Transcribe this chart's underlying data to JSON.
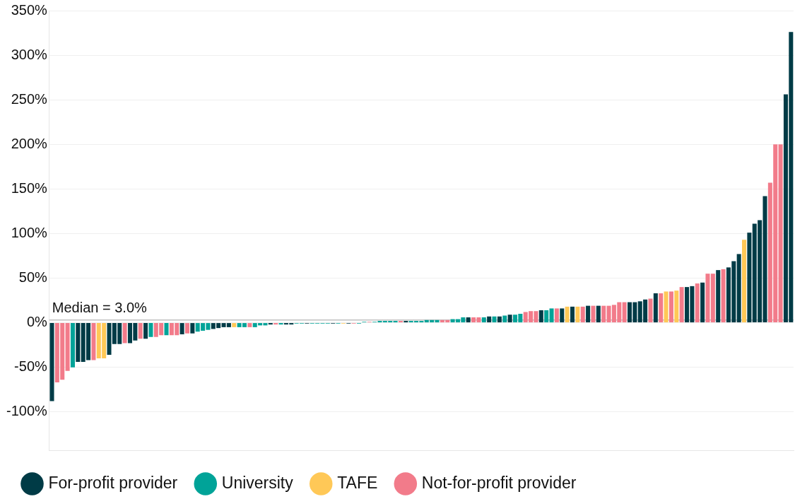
{
  "chart_data": {
    "type": "bar",
    "categories": [
      null,
      null,
      null,
      null,
      null,
      null,
      null,
      null,
      null,
      null,
      null,
      null,
      null,
      null,
      null,
      null,
      null,
      null,
      null,
      null,
      null,
      null,
      null,
      null,
      null,
      null,
      null,
      null,
      null,
      null,
      null,
      null,
      null,
      null,
      null,
      null,
      null,
      null,
      null,
      null,
      null,
      null,
      null,
      null,
      null,
      null,
      null,
      null,
      null,
      null,
      null,
      null,
      null,
      null,
      null,
      null,
      null,
      null,
      null,
      null,
      null,
      null,
      null,
      null,
      null,
      null,
      null,
      null,
      null,
      null,
      null,
      null,
      null,
      null,
      null,
      null,
      null,
      null,
      null,
      null,
      null,
      null,
      null,
      null,
      null,
      null,
      null,
      null,
      null,
      null,
      null,
      null,
      null,
      null,
      null,
      null,
      null,
      null,
      null,
      null,
      null,
      null,
      null,
      null,
      null,
      null,
      null,
      null,
      null,
      null,
      null,
      null,
      null,
      null,
      null,
      null,
      null,
      null,
      null,
      null,
      null,
      null,
      null,
      null,
      null,
      null,
      null,
      null,
      null,
      null,
      null,
      null,
      null,
      null,
      null,
      null,
      null,
      null,
      null,
      null,
      null,
      null,
      null
    ],
    "series": [
      {
        "name": "For-profit provider",
        "color": "#003b46",
        "values": [
          -88,
          null,
          null,
          null,
          null,
          -44,
          -44,
          -42,
          null,
          null,
          null,
          -36,
          -24,
          -24,
          null,
          -23,
          -20,
          null,
          -18,
          null,
          null,
          null,
          null,
          null,
          null,
          -13,
          null,
          -12,
          null,
          null,
          null,
          -7,
          -6,
          -5,
          -5,
          null,
          null,
          null,
          null,
          null,
          null,
          null,
          -2,
          null,
          null,
          -2,
          -2,
          null,
          null,
          -1,
          null,
          null,
          null,
          null,
          -1,
          null,
          null,
          -1,
          null,
          null,
          null,
          null,
          null,
          null,
          null,
          null,
          null,
          null,
          2,
          null,
          null,
          null,
          null,
          null,
          null,
          null,
          null,
          null,
          null,
          null,
          6,
          null,
          null,
          null,
          7,
          null,
          7,
          null,
          9,
          null,
          null,
          null,
          null,
          null,
          14,
          null,
          null,
          null,
          16,
          null,
          18,
          null,
          null,
          19,
          null,
          19,
          null,
          null,
          null,
          null,
          null,
          23,
          23,
          24,
          26,
          null,
          33,
          null,
          null,
          null,
          null,
          null,
          40,
          41,
          null,
          45,
          null,
          null,
          59,
          null,
          62,
          69,
          77,
          null,
          101,
          111,
          115,
          142,
          null,
          null,
          null,
          256,
          326
        ]
      },
      {
        "name": "University",
        "color": "#00a398",
        "values": [
          null,
          null,
          null,
          null,
          -50,
          null,
          null,
          null,
          null,
          null,
          null,
          null,
          null,
          null,
          null,
          null,
          null,
          null,
          null,
          -16,
          null,
          null,
          -14,
          null,
          null,
          null,
          null,
          null,
          -10,
          -9,
          -8,
          null,
          null,
          null,
          null,
          null,
          -5,
          -5,
          null,
          -5,
          -3,
          -3,
          null,
          null,
          -2,
          null,
          null,
          -1,
          -1,
          null,
          -1,
          -1,
          -1,
          -1,
          null,
          -1,
          null,
          null,
          null,
          -1,
          1,
          null,
          1,
          2,
          2,
          2,
          2,
          null,
          null,
          2,
          2,
          2,
          3,
          3,
          3,
          null,
          null,
          4,
          4,
          6,
          null,
          null,
          null,
          6,
          null,
          7,
          null,
          8,
          null,
          9,
          10,
          null,
          null,
          null,
          null,
          14,
          16,
          null,
          null,
          null,
          null,
          null,
          null,
          null,
          null,
          null,
          null,
          null,
          null,
          null,
          null,
          null,
          null,
          null,
          null,
          null,
          null,
          null,
          null,
          null,
          null,
          null,
          null,
          null,
          null,
          null,
          null,
          null,
          null,
          null,
          null,
          null,
          null,
          null,
          null,
          null,
          null,
          null,
          null,
          null,
          null,
          null,
          null
        ]
      },
      {
        "name": "TAFE",
        "color": "#ffc857",
        "values": [
          null,
          null,
          null,
          null,
          null,
          null,
          null,
          null,
          null,
          -40,
          -40,
          null,
          null,
          null,
          null,
          null,
          null,
          null,
          null,
          null,
          null,
          null,
          null,
          null,
          null,
          null,
          null,
          null,
          null,
          null,
          null,
          null,
          null,
          null,
          null,
          -5,
          null,
          null,
          null,
          null,
          null,
          null,
          null,
          null,
          null,
          null,
          null,
          null,
          null,
          null,
          null,
          null,
          null,
          null,
          null,
          null,
          -1,
          null,
          null,
          null,
          null,
          null,
          null,
          null,
          null,
          null,
          null,
          null,
          null,
          null,
          null,
          null,
          null,
          null,
          null,
          null,
          null,
          null,
          null,
          null,
          null,
          null,
          null,
          null,
          null,
          null,
          null,
          null,
          null,
          null,
          null,
          null,
          null,
          null,
          null,
          null,
          null,
          null,
          null,
          18,
          null,
          18,
          null,
          null,
          null,
          null,
          null,
          null,
          null,
          null,
          null,
          null,
          null,
          null,
          null,
          null,
          null,
          null,
          35,
          null,
          36,
          null,
          null,
          null,
          null,
          null,
          null,
          null,
          null,
          null,
          null,
          null,
          null,
          93,
          null,
          null,
          null,
          null,
          null,
          null,
          null,
          null,
          null
        ]
      },
      {
        "name": "Not-for-profit provider",
        "color": "#f27b8a",
        "values": [
          null,
          -67,
          -64,
          -54,
          null,
          null,
          null,
          null,
          -42,
          null,
          null,
          null,
          null,
          null,
          -23,
          null,
          null,
          -18,
          null,
          null,
          -16,
          -14,
          null,
          -14,
          -14,
          null,
          -12,
          null,
          null,
          null,
          null,
          null,
          null,
          null,
          null,
          null,
          null,
          null,
          -5,
          null,
          null,
          null,
          null,
          -2,
          null,
          null,
          null,
          null,
          null,
          null,
          null,
          null,
          null,
          null,
          null,
          null,
          null,
          null,
          -1,
          null,
          null,
          1,
          null,
          null,
          null,
          null,
          null,
          2,
          null,
          null,
          null,
          null,
          null,
          null,
          null,
          3,
          3,
          null,
          null,
          null,
          null,
          6,
          6,
          null,
          null,
          null,
          null,
          null,
          null,
          null,
          null,
          12,
          13,
          13,
          null,
          null,
          null,
          16,
          null,
          null,
          null,
          null,
          18,
          null,
          19,
          null,
          19,
          19,
          20,
          23,
          23,
          null,
          null,
          null,
          null,
          27,
          null,
          33,
          null,
          35,
          null,
          40,
          null,
          null,
          44,
          null,
          55,
          55,
          null,
          60,
          null,
          null,
          null,
          null,
          null,
          null,
          null,
          null,
          157,
          200,
          200,
          null,
          null
        ]
      }
    ],
    "ylim": [
      -143,
      350
    ],
    "yticks": [
      {
        "value": -100,
        "label": "-100%"
      },
      {
        "value": -50,
        "label": "-50%"
      },
      {
        "value": 0,
        "label": "0%"
      },
      {
        "value": 50,
        "label": "50%"
      },
      {
        "value": 100,
        "label": "100%"
      },
      {
        "value": 150,
        "label": "150%"
      },
      {
        "value": 200,
        "label": "200%"
      },
      {
        "value": 250,
        "label": "250%"
      },
      {
        "value": 300,
        "label": "300%"
      },
      {
        "value": 350,
        "label": "350%"
      }
    ],
    "ref_lines": [
      {
        "axis": "y",
        "value": 3,
        "label": "Median = 3.0%",
        "color": "#b0b0b0"
      }
    ],
    "grid": "y",
    "legend": "bottom",
    "tick_labels": "y"
  }
}
